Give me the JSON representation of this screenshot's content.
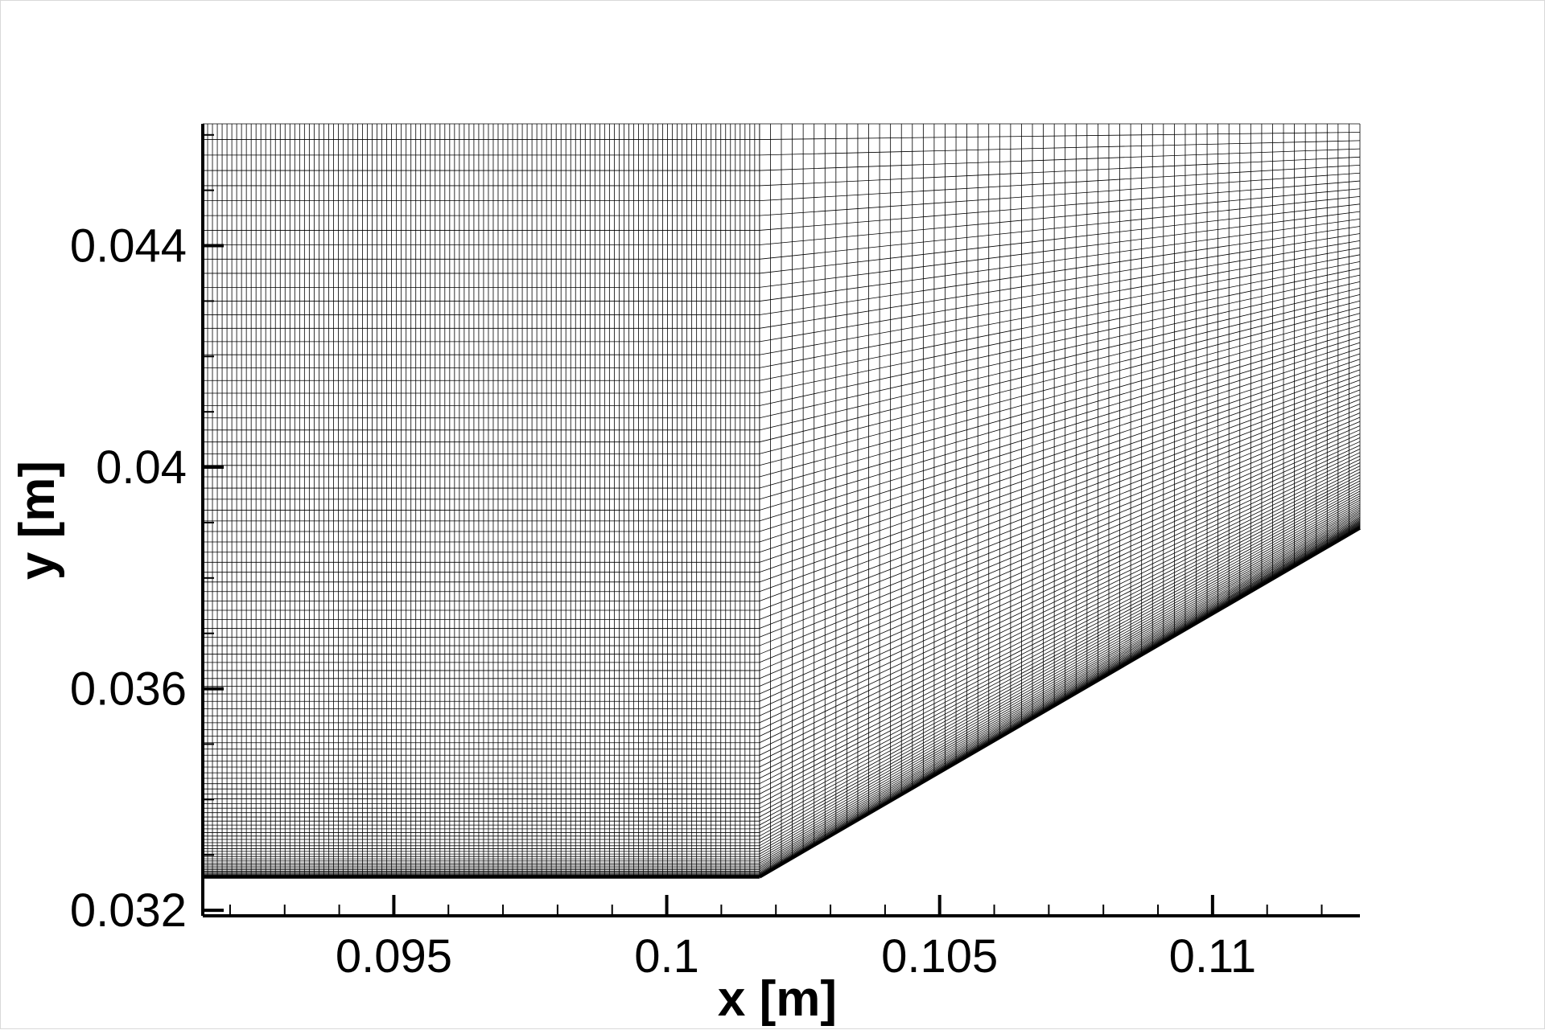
{
  "chart_data": {
    "type": "mesh",
    "xlabel": "x [m]",
    "ylabel": "y [m]",
    "xlim": [
      0.0915,
      0.1127
    ],
    "ylim": [
      0.0319,
      0.0462
    ],
    "x_ticks": [
      {
        "value": 0.095,
        "label": "0.095"
      },
      {
        "value": 0.1,
        "label": "0.1"
      },
      {
        "value": 0.105,
        "label": "0.105"
      },
      {
        "value": 0.11,
        "label": "0.11"
      }
    ],
    "y_ticks": [
      {
        "value": 0.032,
        "label": "0.032"
      },
      {
        "value": 0.036,
        "label": "0.036"
      },
      {
        "value": 0.04,
        "label": "0.04"
      },
      {
        "value": 0.044,
        "label": "0.044"
      }
    ],
    "x_minor_step": 0.001,
    "y_minor_step": 0.001,
    "geometry": {
      "wall_flat_y": 0.0326,
      "corner_x": 0.1017,
      "outlet_x": 0.1127,
      "outlet_wall_y": 0.0389,
      "top_y": 0.0462
    },
    "grid": {
      "upstream_i_cells": 115,
      "downstream_i_cells": 55,
      "j_cells": 100,
      "wall_clustering_exponent": 2.1
    },
    "grid_color": "#000000",
    "background": "#ffffff"
  }
}
